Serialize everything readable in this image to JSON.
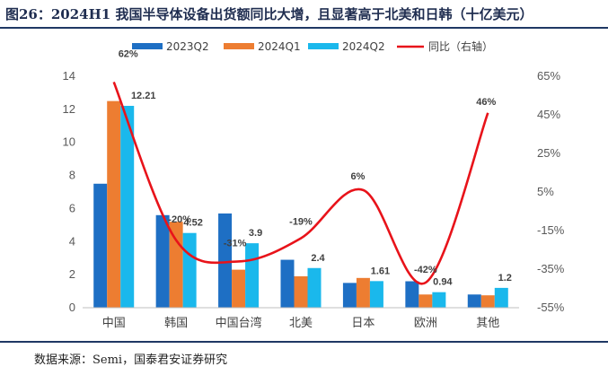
{
  "header": {
    "title": "图26：2024H1 我国半导体设备出货额同比大增，且显著高于北美和日韩（十亿美元）"
  },
  "footer": {
    "source": "数据来源：Semi，国泰君安证券研究"
  },
  "chart_data": {
    "type": "bar",
    "title": "图26：2024H1 我国半导体设备出货额同比大增，且显著高于北美和日韩（十亿美元）",
    "categories": [
      "中国",
      "韩国",
      "中国台湾",
      "北美",
      "日本",
      "欧洲",
      "其他"
    ],
    "series": [
      {
        "name": "2023Q2",
        "color": "#1e6fc4",
        "values": [
          7.5,
          5.6,
          5.7,
          2.9,
          1.5,
          1.6,
          0.8
        ]
      },
      {
        "name": "2024Q1",
        "color": "#ed7d31",
        "values": [
          12.5,
          5.2,
          2.3,
          1.9,
          1.8,
          0.8,
          0.75
        ]
      },
      {
        "name": "2024Q2",
        "color": "#1ab8ec",
        "values": [
          12.21,
          4.52,
          3.9,
          2.4,
          1.61,
          0.94,
          1.2
        ]
      }
    ],
    "line": {
      "name": "同比（右轴）",
      "color": "#e8131a",
      "axis": "right",
      "values": [
        62,
        -20,
        -31,
        -19,
        6,
        -42,
        46
      ],
      "labels": [
        "62%",
        "-20%",
        "-31%",
        "-19%",
        "6%",
        "-42%",
        "46%"
      ]
    },
    "bar_labels": [
      "12.21",
      "4.52",
      "3.9",
      "2.4",
      "1.61",
      "0.94",
      "1.2"
    ],
    "y_left": {
      "min": 0,
      "max": 14,
      "ticks": [
        0,
        2,
        4,
        6,
        8,
        10,
        12,
        14
      ]
    },
    "y_right": {
      "min": -55,
      "max": 65,
      "ticks": [
        "-55%",
        "-35%",
        "-15%",
        "5%",
        "25%",
        "45%",
        "65%"
      ],
      "tick_values": [
        -55,
        -35,
        -15,
        5,
        25,
        45,
        65
      ]
    },
    "legend_position": "top"
  }
}
